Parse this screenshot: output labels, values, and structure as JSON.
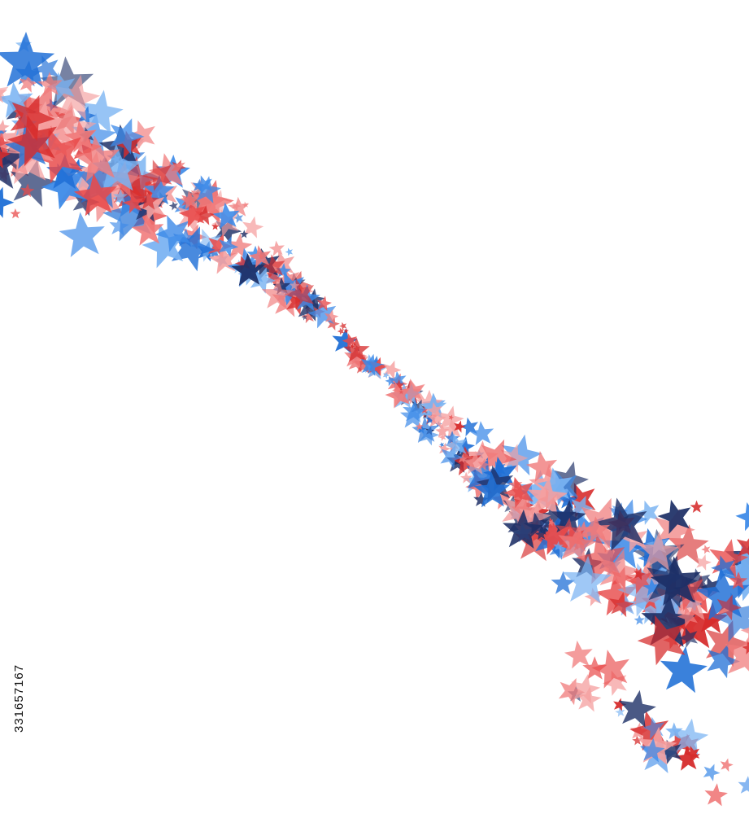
{
  "image_id": "331657167"
}
